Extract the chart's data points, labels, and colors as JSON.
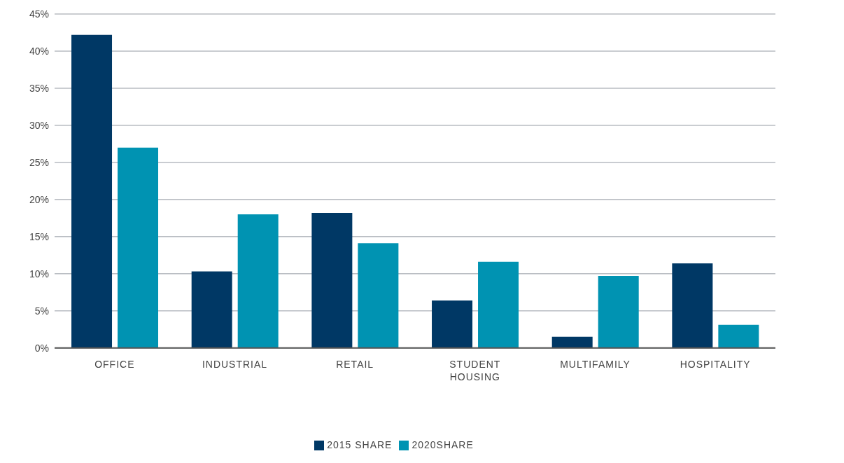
{
  "chart_data": {
    "type": "bar",
    "categories": [
      "OFFICE",
      "INDUSTRIAL",
      "RETAIL",
      "STUDENT HOUSING",
      "MULTIFAMILY",
      "HOSPITALITY"
    ],
    "series": [
      {
        "name": "2015 SHARE",
        "color": "#003865",
        "values": [
          42.2,
          10.3,
          18.2,
          6.4,
          1.5,
          11.4
        ]
      },
      {
        "name": "2020SHARE",
        "color": "#0093b2",
        "values": [
          27,
          18,
          14.1,
          11.6,
          9.7,
          3.1
        ]
      }
    ],
    "ylim": [
      0,
      45
    ],
    "yticks": [
      {
        "value": 0,
        "label": "0%"
      },
      {
        "value": 5,
        "label": "5%"
      },
      {
        "value": 10,
        "label": "10%"
      },
      {
        "value": 15,
        "label": "15%"
      },
      {
        "value": 20,
        "label": "20%"
      },
      {
        "value": 25,
        "label": "25%"
      },
      {
        "value": 30,
        "label": "30%"
      },
      {
        "value": 35,
        "label": "35%"
      },
      {
        "value": 40,
        "label": "40%"
      },
      {
        "value": 45,
        "label": "45%"
      }
    ],
    "grid": "y",
    "legend": "bottom"
  }
}
